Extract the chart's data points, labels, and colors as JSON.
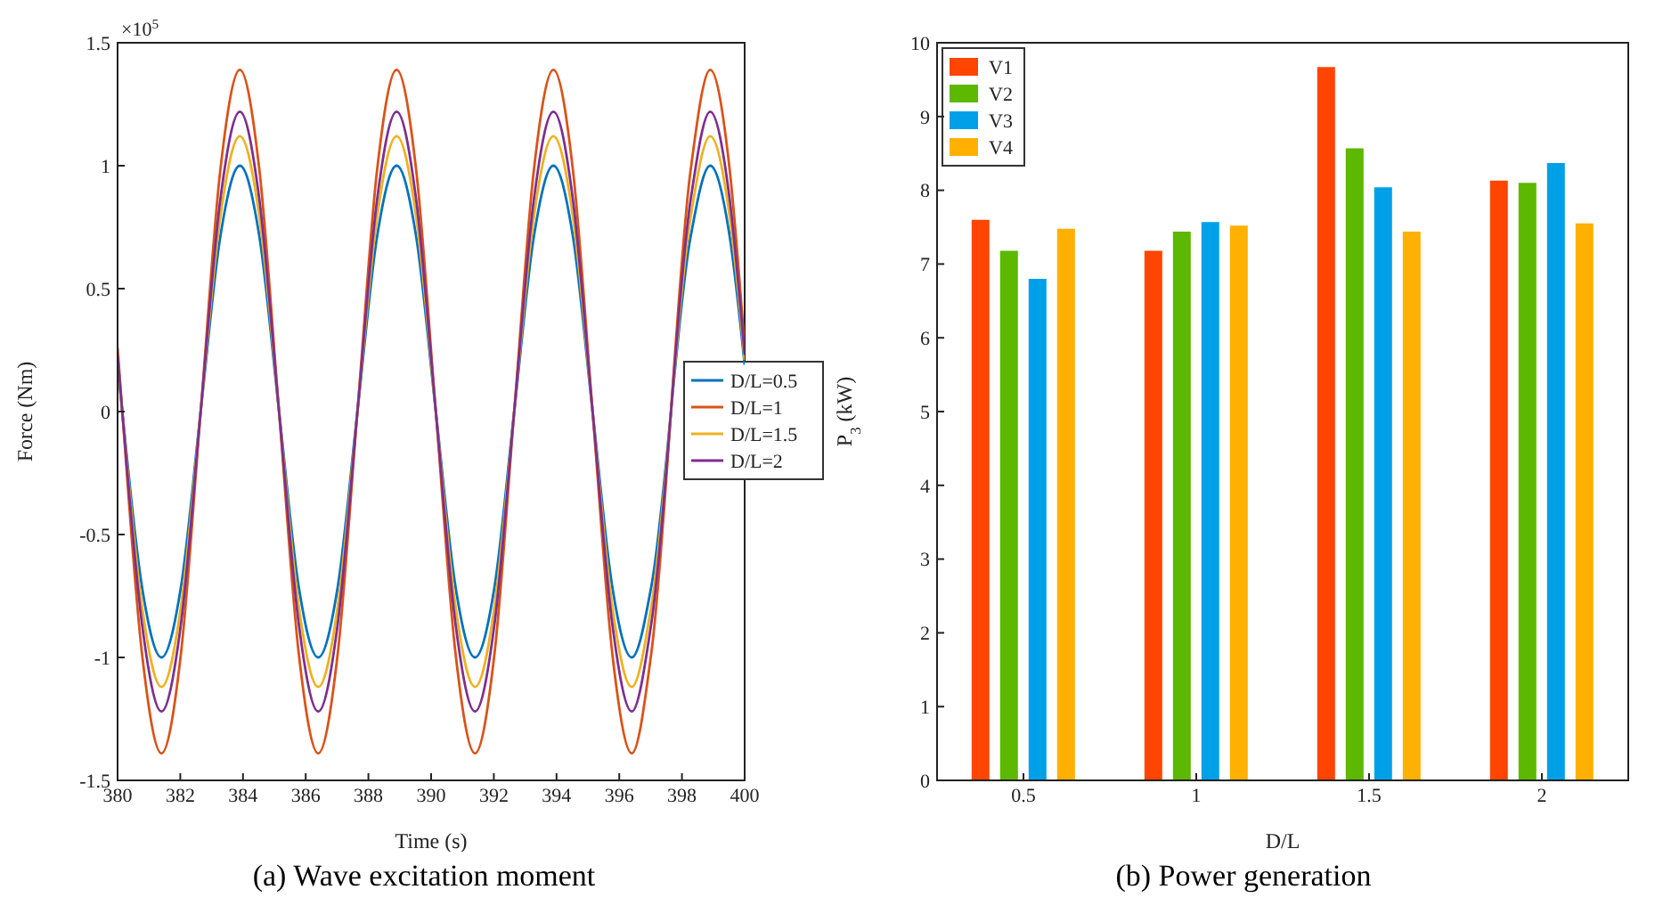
{
  "chart_data": [
    {
      "type": "line",
      "title": "(a) Wave excitation moment",
      "xlabel": "Time (s)",
      "ylabel": "Force (Nm)",
      "annotations": [
        "×10$^{5}$"
      ],
      "x": [
        380,
        380.15,
        380.775,
        381.4,
        382.025,
        382.65,
        383.275,
        383.9,
        384.525,
        385.15,
        385.775,
        386.4,
        387.025,
        387.65,
        388.275,
        388.9,
        389.525,
        390.15,
        390.775,
        391.4,
        392.025,
        392.65,
        393.275,
        393.9,
        394.525,
        395.15,
        395.775,
        396.4,
        397.025,
        398.275,
        398.9,
        399.525,
        400
      ],
      "series": [
        {
          "name": "D/L=0.5",
          "color": "#0072bd",
          "values": [
            0.19,
            0,
            -0.71,
            -1,
            -0.71,
            0,
            0.71,
            1,
            0.71,
            0,
            -0.71,
            -1,
            -0.71,
            0,
            0.71,
            1,
            0.71,
            0,
            -0.71,
            -1,
            -0.71,
            0,
            0.71,
            1,
            0.71,
            0,
            -0.71,
            -1,
            -0.71,
            0.71,
            1,
            0.71,
            0.19
          ]
        },
        {
          "name": "D/L=1",
          "color": "#d95319",
          "values": [
            0.26,
            0,
            -0.98,
            -1.39,
            -0.98,
            0,
            0.98,
            1.39,
            0.98,
            0,
            -0.98,
            -1.39,
            -0.98,
            0,
            0.98,
            1.39,
            0.98,
            0,
            -0.98,
            -1.39,
            -0.98,
            0,
            0.98,
            1.39,
            0.98,
            0,
            -0.98,
            -1.39,
            -0.98,
            0.98,
            1.39,
            0.98,
            0.26
          ]
        },
        {
          "name": "D/L=1.5",
          "color": "#edb120",
          "values": [
            0.21,
            0,
            -0.79,
            -1.12,
            -0.79,
            0,
            0.79,
            1.12,
            0.79,
            0,
            -0.79,
            -1.12,
            -0.79,
            0,
            0.79,
            1.12,
            0.79,
            0,
            -0.79,
            -1.12,
            -0.79,
            0,
            0.79,
            1.12,
            0.79,
            0,
            -0.79,
            -1.12,
            -0.79,
            0.79,
            1.12,
            0.79,
            0.21
          ]
        },
        {
          "name": "D/L=2",
          "color": "#7e2f8e",
          "values": [
            0.23,
            0,
            -0.86,
            -1.22,
            -0.86,
            0,
            0.86,
            1.22,
            0.86,
            0,
            -0.86,
            -1.22,
            -0.86,
            0,
            0.86,
            1.22,
            0.86,
            0,
            -0.86,
            -1.22,
            -0.86,
            0,
            0.86,
            1.22,
            0.86,
            0,
            -0.86,
            -1.22,
            -0.86,
            0.86,
            1.22,
            0.86,
            0.23
          ]
        }
      ],
      "xlim": [
        380,
        400
      ],
      "xticks": [
        380,
        382,
        384,
        386,
        388,
        390,
        392,
        394,
        396,
        398,
        400
      ],
      "ylim": [
        -1.5,
        1.5
      ],
      "yticks": [
        -1.5,
        -1,
        -0.5,
        0,
        0.5,
        1,
        1.5
      ],
      "legend": "center right",
      "marker": "none",
      "line_style": "solid",
      "grid": false
    },
    {
      "type": "bar",
      "title": "(b) Power generation",
      "xlabel": "D/L",
      "ylabel": "P$_{3}$ (kW)",
      "categories": [
        "0.5",
        "1",
        "1.5",
        "2"
      ],
      "series": [
        {
          "name": "V1",
          "color": "#ff4500",
          "values": [
            7.6,
            7.18,
            9.67,
            8.13
          ]
        },
        {
          "name": "V2",
          "color": "#5cb800",
          "values": [
            7.18,
            7.44,
            8.57,
            8.1
          ]
        },
        {
          "name": "V3",
          "color": "#00a0e9",
          "values": [
            6.8,
            7.57,
            8.04,
            8.37
          ]
        },
        {
          "name": "V4",
          "color": "#ffb000",
          "values": [
            7.48,
            7.52,
            7.44,
            7.55
          ]
        }
      ],
      "ylim": [
        0,
        10
      ],
      "yticks": [
        0,
        1,
        2,
        3,
        4,
        5,
        6,
        7,
        8,
        9,
        10
      ],
      "legend": "top left",
      "grid": false
    }
  ]
}
